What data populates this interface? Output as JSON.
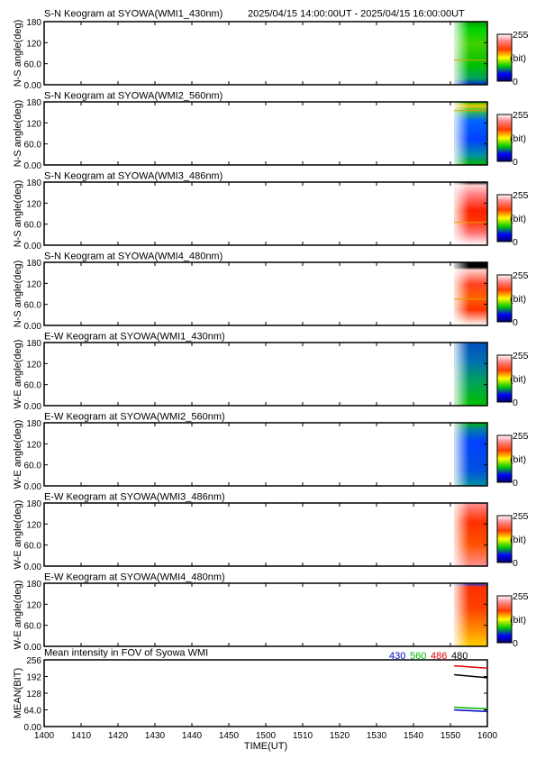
{
  "header": {
    "time_range": "2025/04/15 14:00:00UT - 2025/04/15 16:00:00UT"
  },
  "colors": {
    "c430": "#0000c8",
    "c560": "#00b400",
    "c486": "#e00000",
    "c480": "#000000"
  },
  "colorbar": {
    "max_label": "255",
    "unit_label": "(bit)",
    "min_label": "0",
    "scale": "blue-green-yellow-red-white"
  },
  "panels": [
    {
      "title": "S-N Keogram at SYOWA(WMI1_430nm)",
      "ylabel": "N-S angle(deg)",
      "yticks": [
        "180",
        "120",
        "60.0",
        "0.00"
      ],
      "data_start_time": "1551",
      "style": "green_top_blue_bottom",
      "aurora_line_deg": 70
    },
    {
      "title": "S-N Keogram at SYOWA(WMI2_560nm)",
      "ylabel": "N-S angle(deg)",
      "yticks": [
        "180",
        "120",
        "60.0",
        "0.00"
      ],
      "data_start_time": "1551",
      "style": "blue_green_orange_band",
      "aurora_line_deg": 155
    },
    {
      "title": "S-N Keogram at SYOWA(WMI3_486nm)",
      "ylabel": "N-S angle(deg)",
      "yticks": [
        "180",
        "120",
        "60.0",
        "0.00"
      ],
      "data_start_time": "1551",
      "style": "red_white",
      "aurora_line_deg": 65
    },
    {
      "title": "S-N Keogram at SYOWA(WMI4_480nm)",
      "ylabel": "N-S angle(deg)",
      "yticks": [
        "180",
        "120",
        "60.0",
        "0.00"
      ],
      "data_start_time": "1551",
      "style": "red_white_black_top",
      "aurora_line_deg": 75
    },
    {
      "title": "E-W Keogram at SYOWA(WMI1_430nm)",
      "ylabel": "W-E angle(deg)",
      "yticks": [
        "180",
        "120",
        "60.0",
        "0.00"
      ],
      "data_start_time": "1551",
      "style": "blue_green",
      "aurora_line_deg": null
    },
    {
      "title": "E-W Keogram at SYOWA(WMI2_560nm)",
      "ylabel": "W-E angle(deg)",
      "yticks": [
        "180",
        "120",
        "60.0",
        "0.00"
      ],
      "data_start_time": "1551",
      "style": "blue_green_top",
      "aurora_line_deg": null
    },
    {
      "title": "E-W Keogram at SYOWA(WMI3_486nm)",
      "ylabel": "W-E angle(deg)",
      "yticks": [
        "180",
        "120",
        "60.0",
        "0.00"
      ],
      "data_start_time": "1551",
      "style": "orange_red",
      "aurora_line_deg": null
    },
    {
      "title": "E-W Keogram at SYOWA(WMI4_480nm)",
      "ylabel": "W-E angle(deg)",
      "yticks": [
        "180",
        "120",
        "60.0",
        "0.00"
      ],
      "data_start_time": "1551",
      "style": "orange_red_blue_top",
      "aurora_line_deg": null
    }
  ],
  "x_axis": {
    "ticks": [
      "1400",
      "1410",
      "1420",
      "1430",
      "1440",
      "1450",
      "1500",
      "1510",
      "1520",
      "1530",
      "1540",
      "1550",
      "1600"
    ],
    "label": "TIME(UT)"
  },
  "chart_data": {
    "type": "line",
    "title": "Mean intensity in FOV of Syowa WMI",
    "xlabel": "TIME(UT)",
    "ylabel": "MEAN(BIT)",
    "xlim": [
      "14:00",
      "16:00"
    ],
    "ylim": [
      0,
      256
    ],
    "yticks": [
      "256",
      "192",
      "128",
      "64.0",
      "0.00"
    ],
    "x": [
      "15:51",
      "15:54",
      "15:57",
      "16:00"
    ],
    "series": [
      {
        "name": "430",
        "values": [
          64,
          62,
          60,
          58
        ]
      },
      {
        "name": "560",
        "values": [
          74,
          72,
          70,
          68
        ]
      },
      {
        "name": "486",
        "values": [
          233,
          230,
          227,
          224
        ]
      },
      {
        "name": "480",
        "values": [
          199,
          195,
          191,
          187
        ]
      }
    ]
  }
}
